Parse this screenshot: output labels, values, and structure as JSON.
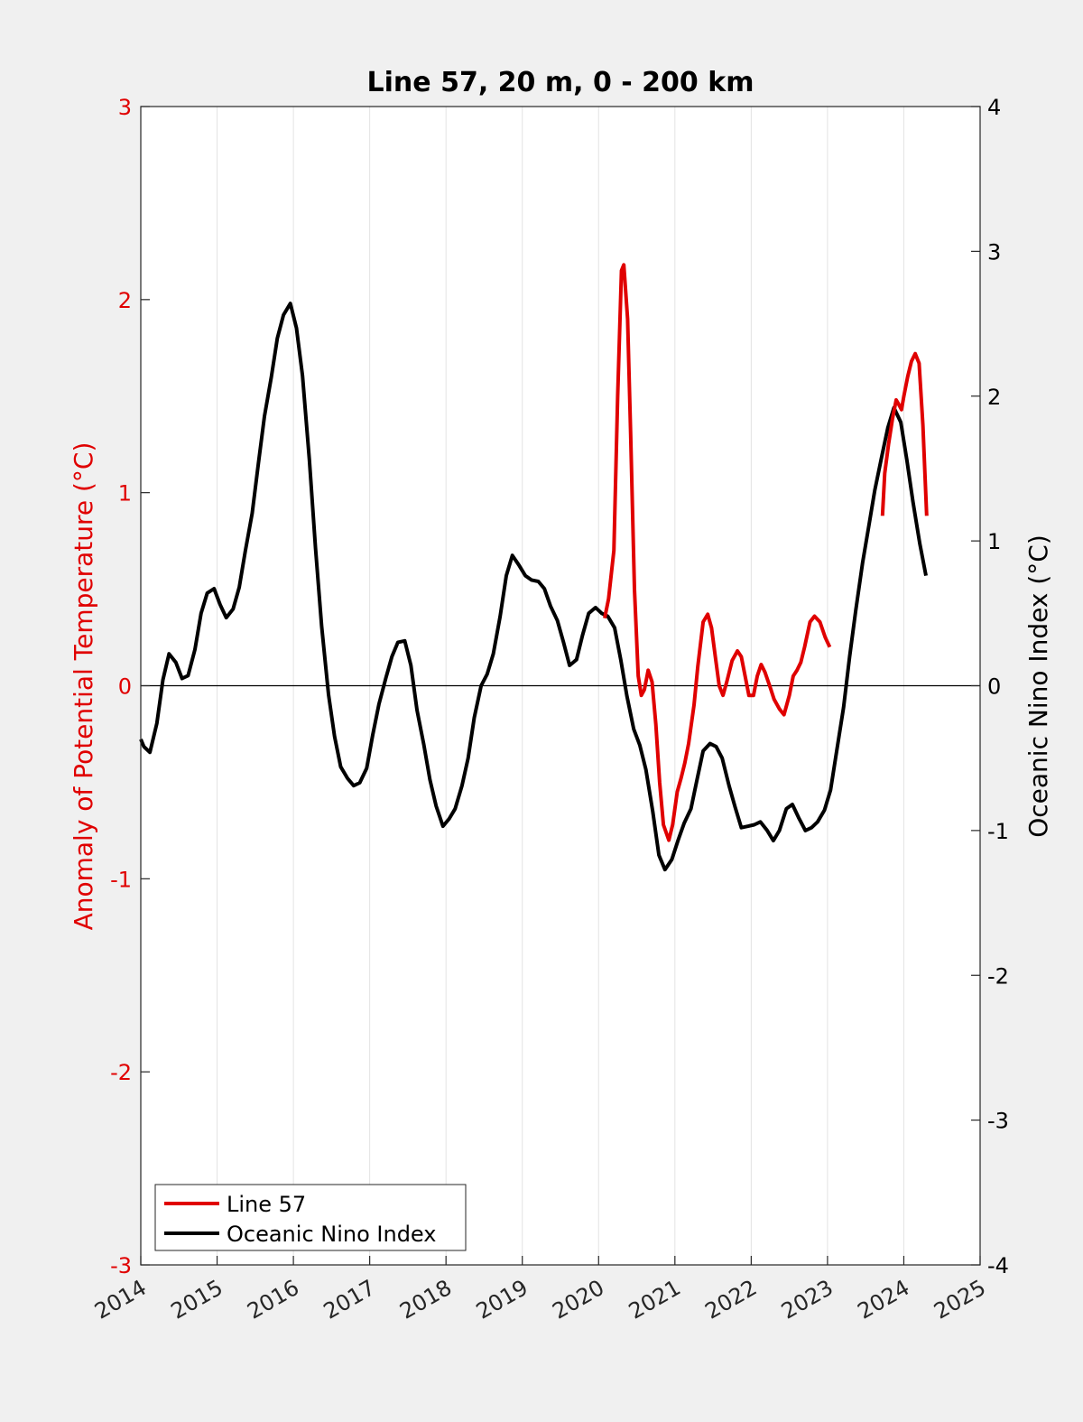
{
  "chart_data": {
    "type": "line",
    "title": "Line 57, 20 m, 0 - 200 km",
    "xlabel": "",
    "ylabel_left": "Anomaly of Potential Temperature (°C)",
    "ylabel_right": "Oceanic Nino Index (°C)",
    "xlim": [
      2014,
      2025
    ],
    "ylim_left": [
      -3,
      3
    ],
    "ylim_right": [
      -4,
      4
    ],
    "x_ticks": [
      "2014",
      "2015",
      "2016",
      "2017",
      "2018",
      "2019",
      "2020",
      "2021",
      "2022",
      "2023",
      "2024",
      "2025"
    ],
    "y_left_ticks": [
      "-3",
      "-2",
      "-1",
      "0",
      "1",
      "2",
      "3"
    ],
    "y_right_ticks": [
      "-4",
      "-3",
      "-2",
      "-1",
      "0",
      "1",
      "2",
      "3",
      "4"
    ],
    "grid": "vertical",
    "legend_position": "bottom-left",
    "colors": {
      "line57": "#e00000",
      "oni": "#000000",
      "left_axis": "#e00000",
      "right_axis": "#000000"
    },
    "series": [
      {
        "name": "Line 57",
        "axis": "left",
        "segments": [
          {
            "x": [
              2020.08,
              2020.13,
              2020.2,
              2020.25,
              2020.3,
              2020.33,
              2020.38,
              2020.42,
              2020.47,
              2020.52,
              2020.56,
              2020.6,
              2020.65,
              2020.7,
              2020.75,
              2020.8,
              2020.85,
              2020.92,
              2020.97,
              2021.03,
              2021.08,
              2021.13,
              2021.18,
              2021.25,
              2021.3,
              2021.37,
              2021.43,
              2021.48,
              2021.53,
              2021.58,
              2021.63,
              2021.68,
              2021.75,
              2021.82,
              2021.87,
              2021.92,
              2021.97,
              2022.03,
              2022.08,
              2022.13,
              2022.18,
              2022.25,
              2022.3,
              2022.37,
              2022.43,
              2022.5,
              2022.55,
              2022.6,
              2022.65,
              2022.7,
              2022.77,
              2022.83,
              2022.9,
              2022.97,
              2023.03
            ],
            "y": [
              0.35,
              0.45,
              0.7,
              1.5,
              2.15,
              2.18,
              1.9,
              1.3,
              0.5,
              0.05,
              -0.05,
              -0.02,
              0.08,
              0.02,
              -0.2,
              -0.5,
              -0.72,
              -0.8,
              -0.72,
              -0.55,
              -0.48,
              -0.4,
              -0.3,
              -0.1,
              0.1,
              0.33,
              0.37,
              0.3,
              0.15,
              0.0,
              -0.05,
              0.02,
              0.13,
              0.18,
              0.15,
              0.05,
              -0.05,
              -0.05,
              0.05,
              0.11,
              0.07,
              -0.01,
              -0.07,
              -0.12,
              -0.15,
              -0.05,
              0.05,
              0.08,
              0.12,
              0.2,
              0.33,
              0.36,
              0.33,
              0.25,
              0.2
            ]
          },
          {
            "x": [
              2023.72,
              2023.75,
              2023.8,
              2023.85,
              2023.9,
              2023.93,
              2023.97,
              2024.0,
              2024.05,
              2024.1,
              2024.15,
              2024.2,
              2024.25,
              2024.3
            ],
            "y": [
              0.88,
              1.1,
              1.25,
              1.38,
              1.48,
              1.46,
              1.43,
              1.5,
              1.6,
              1.68,
              1.72,
              1.67,
              1.35,
              0.88
            ]
          }
        ]
      },
      {
        "name": "Oceanic Nino Index",
        "axis": "right",
        "segments": [
          {
            "x": [
              2014.0,
              2014.04,
              2014.12,
              2014.21,
              2014.29,
              2014.37,
              2014.46,
              2014.54,
              2014.62,
              2014.71,
              2014.79,
              2014.87,
              2014.96,
              2015.04,
              2015.12,
              2015.21,
              2015.29,
              2015.37,
              2015.46,
              2015.54,
              2015.62,
              2015.71,
              2015.79,
              2015.87,
              2015.96,
              2016.04,
              2016.12,
              2016.21,
              2016.29,
              2016.37,
              2016.46,
              2016.54,
              2016.62,
              2016.71,
              2016.79,
              2016.87,
              2016.96,
              2017.04,
              2017.12,
              2017.21,
              2017.29,
              2017.37,
              2017.46,
              2017.54,
              2017.62,
              2017.71,
              2017.79,
              2017.87,
              2017.96,
              2018.04,
              2018.12,
              2018.21,
              2018.29,
              2018.37,
              2018.46,
              2018.54,
              2018.62,
              2018.71,
              2018.79,
              2018.87,
              2018.96,
              2019.04,
              2019.12,
              2019.21,
              2019.29,
              2019.37,
              2019.46,
              2019.54,
              2019.62,
              2019.71,
              2019.79,
              2019.87,
              2019.96,
              2020.04,
              2020.12,
              2020.21,
              2020.29,
              2020.37,
              2020.46,
              2020.54,
              2020.62,
              2020.71,
              2020.79,
              2020.87,
              2020.96,
              2021.04,
              2021.12,
              2021.21,
              2021.29,
              2021.37,
              2021.46,
              2021.54,
              2021.62,
              2021.71,
              2021.79,
              2021.87,
              2021.96,
              2022.04,
              2022.12,
              2022.21,
              2022.29,
              2022.37,
              2022.46,
              2022.54,
              2022.62,
              2022.71,
              2022.79,
              2022.87,
              2022.96,
              2023.04,
              2023.12,
              2023.21,
              2023.29,
              2023.37,
              2023.46,
              2023.54,
              2023.62,
              2023.71,
              2023.79,
              2023.87,
              2023.96,
              2024.04,
              2024.12,
              2024.21,
              2024.29
            ],
            "y": [
              -0.37,
              -0.42,
              -0.46,
              -0.26,
              0.04,
              0.22,
              0.16,
              0.05,
              0.07,
              0.25,
              0.5,
              0.64,
              0.67,
              0.56,
              0.47,
              0.53,
              0.68,
              0.93,
              1.19,
              1.53,
              1.86,
              2.13,
              2.4,
              2.56,
              2.64,
              2.47,
              2.14,
              1.56,
              0.95,
              0.41,
              -0.06,
              -0.35,
              -0.56,
              -0.64,
              -0.69,
              -0.67,
              -0.57,
              -0.34,
              -0.13,
              0.05,
              0.2,
              0.3,
              0.31,
              0.14,
              -0.17,
              -0.41,
              -0.65,
              -0.83,
              -0.97,
              -0.92,
              -0.85,
              -0.69,
              -0.5,
              -0.22,
              0.0,
              0.08,
              0.22,
              0.48,
              0.76,
              0.9,
              0.83,
              0.76,
              0.73,
              0.72,
              0.67,
              0.55,
              0.45,
              0.3,
              0.14,
              0.18,
              0.35,
              0.5,
              0.54,
              0.5,
              0.48,
              0.4,
              0.18,
              -0.07,
              -0.3,
              -0.41,
              -0.58,
              -0.87,
              -1.17,
              -1.27,
              -1.2,
              -1.07,
              -0.95,
              -0.85,
              -0.65,
              -0.45,
              -0.4,
              -0.42,
              -0.5,
              -0.69,
              -0.84,
              -0.98,
              -0.97,
              -0.96,
              -0.94,
              -1.0,
              -1.07,
              -1.0,
              -0.85,
              -0.82,
              -0.91,
              -1.0,
              -0.98,
              -0.94,
              -0.86,
              -0.72,
              -0.45,
              -0.15,
              0.2,
              0.52,
              0.85,
              1.1,
              1.35,
              1.58,
              1.78,
              1.92,
              1.82,
              1.56,
              1.27,
              0.98,
              0.76
            ]
          }
        ]
      }
    ]
  }
}
